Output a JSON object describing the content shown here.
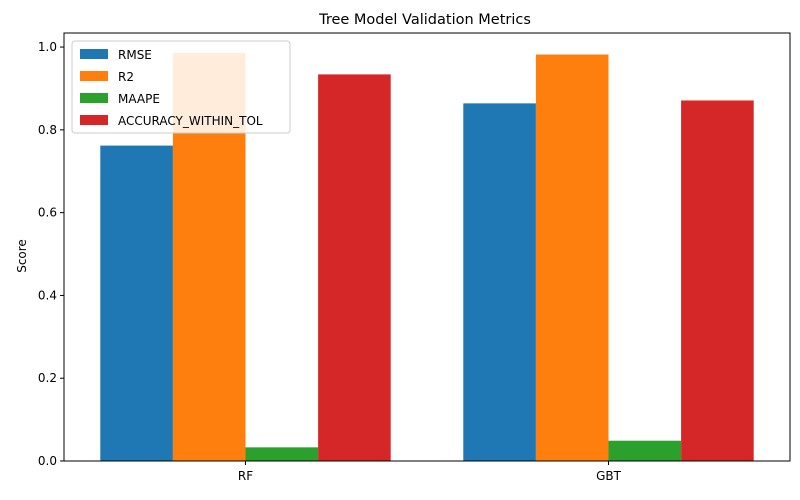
{
  "chart_data": {
    "type": "bar",
    "title": "Tree Model Validation Metrics",
    "xlabel": "",
    "ylabel": "Score",
    "categories": [
      "RF",
      "GBT"
    ],
    "series": [
      {
        "name": "RMSE",
        "values": [
          0.762,
          0.864
        ],
        "color": "#1f77b4"
      },
      {
        "name": "R2",
        "values": [
          0.986,
          0.982
        ],
        "color": "#ff7f0e"
      },
      {
        "name": "MAAPE",
        "values": [
          0.033,
          0.049
        ],
        "color": "#2ca02c"
      },
      {
        "name": "ACCURACY_WITHIN_TOL",
        "values": [
          0.934,
          0.871
        ],
        "color": "#d62728"
      }
    ],
    "ylim": [
      0,
      1.034
    ],
    "yticks": [
      0.0,
      0.2,
      0.4,
      0.6,
      0.8,
      1.0
    ],
    "ytick_labels": [
      "0.0",
      "0.2",
      "0.4",
      "0.6",
      "0.8",
      "1.0"
    ],
    "grid": false,
    "legend_position": "top-left"
  }
}
